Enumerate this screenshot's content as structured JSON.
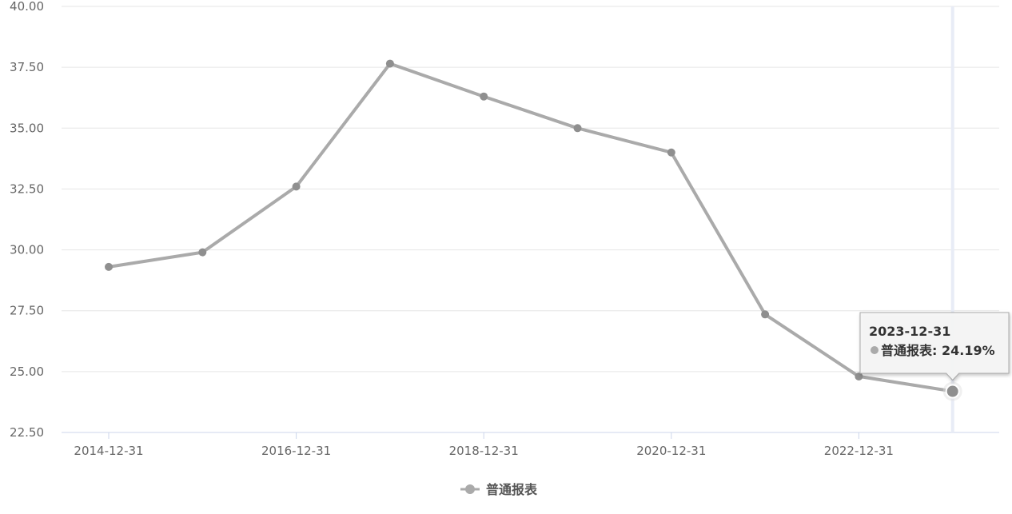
{
  "chart_data": {
    "type": "line",
    "x": [
      "2014-12-31",
      "2015-12-31",
      "2016-12-31",
      "2017-12-31",
      "2018-12-31",
      "2019-12-31",
      "2020-12-31",
      "2021-12-31",
      "2022-12-31",
      "2023-12-31"
    ],
    "x_tick_labels": [
      "2014-12-31",
      "2016-12-31",
      "2018-12-31",
      "2020-12-31",
      "2022-12-31"
    ],
    "series": [
      {
        "name": "普通报表",
        "values": [
          29.3,
          29.9,
          32.6,
          37.65,
          36.3,
          35.0,
          34.0,
          27.35,
          24.8,
          24.19
        ],
        "color": "#aaaaaa"
      }
    ],
    "ylim": [
      22.5,
      40.0
    ],
    "y_tick_labels": [
      "40.00",
      "37.50",
      "35.00",
      "32.50",
      "30.00",
      "27.50",
      "25.00",
      "22.50"
    ],
    "grid": true,
    "legend": "bottom-center",
    "tooltip": {
      "date": "2023-12-31",
      "label": "普通报表: 24.19%"
    }
  }
}
